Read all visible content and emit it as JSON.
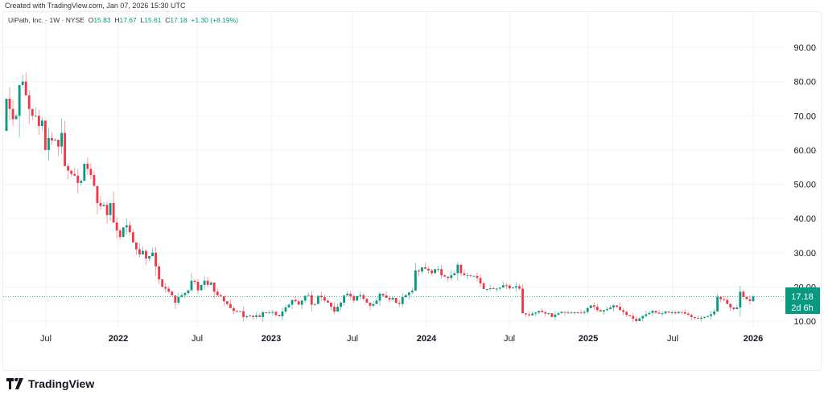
{
  "credit": "Created with TradingView.com, Jan 07, 2026 15:30 UTC",
  "legend": {
    "symbol": "UiPath, Inc. · 1W · NYSE",
    "o_label": "O",
    "o": "15.83",
    "h_label": "H",
    "h": "17.67",
    "l_label": "L",
    "l": "15.61",
    "c_label": "C",
    "c": "17.18",
    "change": "+1.30 (+8.19%)"
  },
  "price_label": {
    "price": "17.18",
    "countdown": "2d 6h"
  },
  "logo": "TradingView",
  "colors": {
    "up": "#089981",
    "down": "#f23645",
    "grid": "#f3f3f3"
  },
  "chart_data": {
    "type": "candlestick",
    "interval": "1W",
    "ylim": [
      0,
      95
    ],
    "y_ticks": [
      "10.00",
      "20.00",
      "30.00",
      "40.00",
      "50.00",
      "60.00",
      "70.00",
      "80.00",
      "90.00"
    ],
    "x_ticks": [
      "Jul",
      "2022",
      "Jul",
      "2023",
      "Jul",
      "2024",
      "Jul",
      "2025",
      "Jul",
      "2026"
    ],
    "grid": true,
    "first_open": 65.6,
    "last": {
      "open": 15.83,
      "high": 17.67,
      "low": 15.61,
      "close": 17.18
    },
    "closes": [
      75,
      72,
      69,
      70,
      79,
      80,
      76,
      72,
      70,
      70,
      67,
      68.6,
      60,
      63.5,
      62.8,
      63,
      61,
      65,
      55.3,
      54,
      53,
      52.5,
      50.4,
      51,
      56,
      54.5,
      52.7,
      49.5,
      44.5,
      43.6,
      44,
      41,
      44.5,
      38.8,
      36.5,
      34.6,
      37.4,
      38,
      36,
      33,
      31,
      29.5,
      30.5,
      28.3,
      29,
      30,
      26,
      22.2,
      20,
      19.5,
      18.6,
      17.5,
      15.4,
      17,
      17.6,
      18.2,
      19,
      21.8,
      21.5,
      19,
      20.6,
      21.8,
      20.6,
      21.3,
      18.6,
      17.6,
      17.2,
      15.8,
      15,
      13.8,
      13,
      12.8,
      12.9,
      11.2,
      11.4,
      11.6,
      11.2,
      11.7,
      11.2,
      12.6,
      12.5,
      12.5,
      12.7,
      11.8,
      11.4,
      12.8,
      14,
      14.8,
      16.2,
      15.8,
      14.8,
      16,
      17.4,
      17.6,
      14.8,
      15,
      17.4,
      17,
      16,
      15.4,
      14.2,
      12.8,
      14.2,
      15.4,
      17.5,
      18,
      17.3,
      16,
      17.3,
      17.6,
      16.5,
      15.4,
      14.5,
      15,
      16,
      18,
      17.5,
      16.8,
      16.3,
      16.8,
      15.3,
      15,
      17,
      17.6,
      18.4,
      18.9,
      24.8,
      24.5,
      25.7,
      25.3,
      24.8,
      24,
      25.2,
      25.2,
      23.4,
      23,
      22.6,
      23.4,
      24,
      26.5,
      24,
      23.4,
      23.4,
      23.2,
      23.2,
      22.6,
      21,
      19.4,
      19.4,
      19.6,
      19.4,
      19.5,
      19.8,
      20.5,
      20.4,
      19.6,
      19.8,
      20.2,
      19.5,
      12.3,
      12,
      11.7,
      12.2,
      12.5,
      13,
      12.6,
      12.2,
      12.3,
      11.2,
      11.9,
      12.3,
      12.7,
      12.5,
      12.5,
      12.4,
      12.6,
      12.5,
      12.4,
      12.7,
      13.8,
      14.6,
      14.2,
      13.2,
      12.8,
      13.2,
      13.5,
      14,
      14.6,
      14.2,
      13.2,
      12.7,
      11.8,
      11.5,
      10.7,
      10,
      10.8,
      11.5,
      12,
      12.4,
      13,
      12.5,
      12.2,
      12.3,
      12.8,
      12.5,
      12.6,
      12.3,
      12.7,
      12.6,
      12.2,
      11.8,
      11.2,
      10.9,
      10.7,
      11,
      11.2,
      11.5,
      12,
      12.8,
      17.1,
      16.4,
      16.2,
      15,
      14,
      13.5,
      14,
      18.6,
      17.1,
      16.4,
      15.88,
      17.18
    ]
  }
}
